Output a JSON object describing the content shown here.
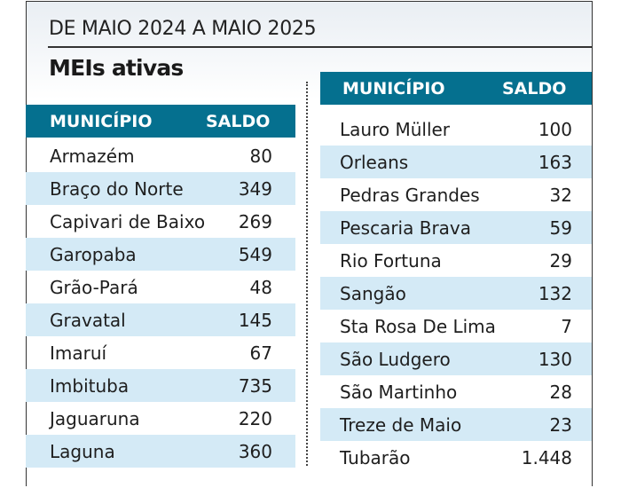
{
  "subtitle": "DE MAIO 2024 A MAIO 2025",
  "title": "MEIs ativas",
  "headers": {
    "municipio": "MUNICÍPIO",
    "saldo": "SALDO"
  },
  "left_rows": [
    {
      "municipio": "Armazém",
      "saldo": "80"
    },
    {
      "municipio": "Braço do Norte",
      "saldo": "349"
    },
    {
      "municipio": "Capivari de Baixo",
      "saldo": "269"
    },
    {
      "municipio": "Garopaba",
      "saldo": "549"
    },
    {
      "municipio": "Grão-Pará",
      "saldo": "48"
    },
    {
      "municipio": "Gravatal",
      "saldo": "145"
    },
    {
      "municipio": "Imaruí",
      "saldo": "67"
    },
    {
      "municipio": "Imbituba",
      "saldo": "735"
    },
    {
      "municipio": "Jaguaruna",
      "saldo": "220"
    },
    {
      "municipio": "Laguna",
      "saldo": "360"
    }
  ],
  "right_rows": [
    {
      "municipio": "Lauro Müller",
      "saldo": "100"
    },
    {
      "municipio": "Orleans",
      "saldo": "163"
    },
    {
      "municipio": "Pedras Grandes",
      "saldo": "32"
    },
    {
      "municipio": "Pescaria Brava",
      "saldo": "59"
    },
    {
      "municipio": "Rio Fortuna",
      "saldo": "29"
    },
    {
      "municipio": "Sangão",
      "saldo": "132"
    },
    {
      "municipio": "Sta Rosa De Lima",
      "saldo": "7"
    },
    {
      "municipio": "São Ludgero",
      "saldo": "130"
    },
    {
      "municipio": "São Martinho",
      "saldo": "28"
    },
    {
      "municipio": "Treze de Maio",
      "saldo": "23"
    },
    {
      "municipio": "Tubarão",
      "saldo": "1.448"
    }
  ],
  "colors": {
    "header": "#05708f",
    "stripe": "#d4eaf6"
  }
}
